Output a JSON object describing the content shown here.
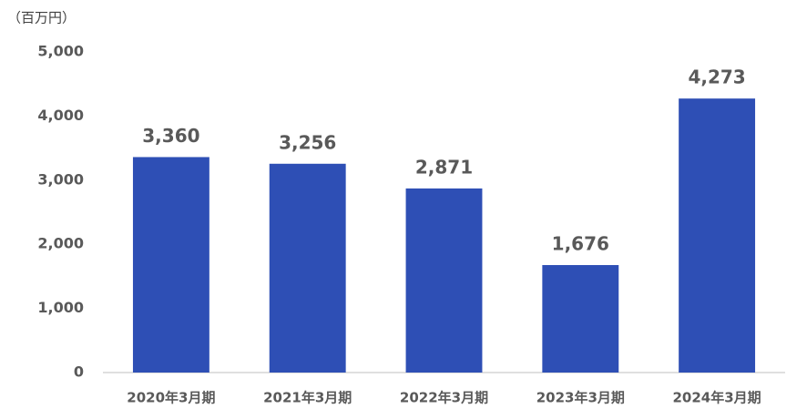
{
  "chart_data": {
    "type": "bar",
    "unit_label": "（百万円）",
    "categories": [
      "2020年3月期",
      "2021年3月期",
      "2022年3月期",
      "2023年3月期",
      "2024年3月期"
    ],
    "values": [
      3360,
      3256,
      2871,
      1676,
      4273
    ],
    "value_labels": [
      "3,360",
      "3,256",
      "2,871",
      "1,676",
      "4,273"
    ],
    "color": "#2e4fb5",
    "ylim": [
      0,
      5000
    ],
    "yticks": [
      0,
      {
        "value": 1000,
        "label": "1,000"
      },
      {
        "value": 2000,
        "label": "2,000"
      },
      {
        "value": 3000,
        "label": "3,000"
      },
      {
        "value": 4000,
        "label": "4,000"
      },
      {
        "value": 5000,
        "label": "5,000"
      }
    ],
    "grid": false
  }
}
